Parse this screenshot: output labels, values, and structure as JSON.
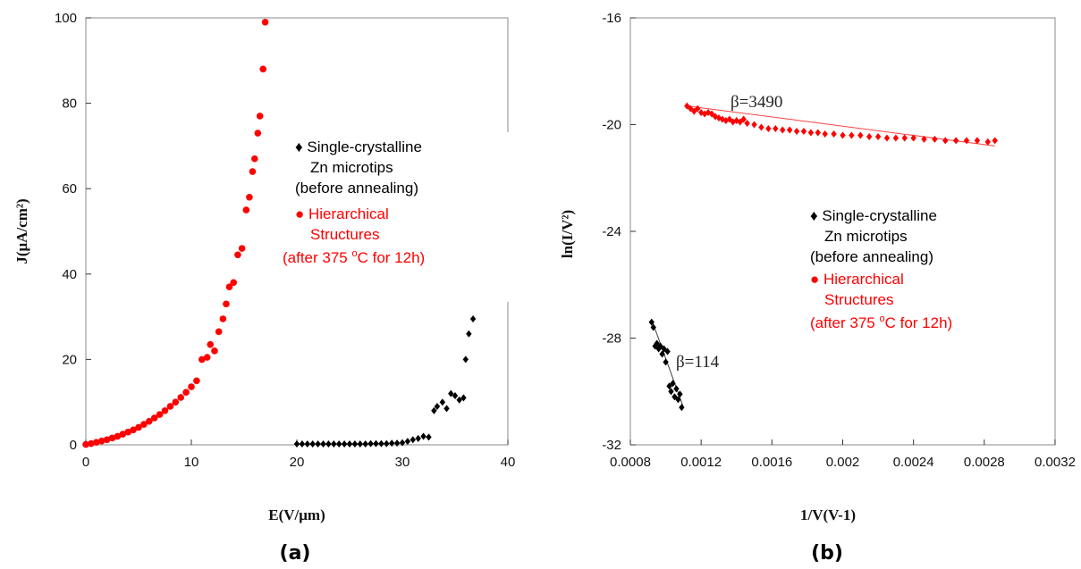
{
  "chart_data": [
    {
      "type": "scatter",
      "panel_label": "(a)",
      "xlabel": "E(V/μm)",
      "ylabel": "J(μA/cm²)",
      "xlim": [
        0,
        40
      ],
      "ylim": [
        0,
        100
      ],
      "xticks": [
        "0",
        "10",
        "20",
        "30",
        "40"
      ],
      "yticks": [
        "0",
        "20",
        "40",
        "60",
        "80",
        "100"
      ],
      "colors": {
        "single": "#000000",
        "hier": "#ff0000"
      },
      "legend": {
        "line1": "♦ Single-crystalline",
        "line2": "Zn microtips",
        "line3": "(before annealing)",
        "line4": "● Hierarchical",
        "line5": "Structures",
        "line6_pre": "(after 375 ",
        "line6_sup": "o",
        "line6_post": "C for 12h)"
      },
      "series": [
        {
          "key": "single",
          "marker": "diamond",
          "points": [
            [
              20.0,
              0.2
            ],
            [
              20.5,
              0.2
            ],
            [
              21.0,
              0.2
            ],
            [
              21.5,
              0.2
            ],
            [
              22.0,
              0.2
            ],
            [
              22.5,
              0.2
            ],
            [
              23.0,
              0.2
            ],
            [
              23.5,
              0.2
            ],
            [
              24.0,
              0.2
            ],
            [
              24.5,
              0.2
            ],
            [
              25.0,
              0.2
            ],
            [
              25.5,
              0.2
            ],
            [
              26.0,
              0.2
            ],
            [
              26.5,
              0.2
            ],
            [
              27.0,
              0.3
            ],
            [
              27.5,
              0.3
            ],
            [
              28.0,
              0.3
            ],
            [
              28.5,
              0.3
            ],
            [
              29.0,
              0.4
            ],
            [
              29.5,
              0.4
            ],
            [
              30.0,
              0.5
            ],
            [
              30.5,
              0.8
            ],
            [
              31.0,
              1.2
            ],
            [
              31.5,
              1.5
            ],
            [
              32.0,
              2.0
            ],
            [
              32.5,
              1.8
            ],
            [
              33.0,
              8.0
            ],
            [
              33.3,
              9.0
            ],
            [
              33.8,
              10.0
            ],
            [
              34.2,
              8.5
            ],
            [
              34.6,
              12.0
            ],
            [
              35.0,
              11.5
            ],
            [
              35.4,
              10.5
            ],
            [
              35.8,
              11.0
            ],
            [
              36.0,
              20.0
            ],
            [
              36.3,
              26.0
            ],
            [
              36.7,
              29.5
            ]
          ]
        },
        {
          "key": "hier",
          "marker": "circle",
          "points": [
            [
              0.0,
              0.1
            ],
            [
              0.5,
              0.3
            ],
            [
              1.0,
              0.6
            ],
            [
              1.5,
              0.9
            ],
            [
              2.0,
              1.2
            ],
            [
              2.5,
              1.6
            ],
            [
              3.0,
              2.0
            ],
            [
              3.5,
              2.5
            ],
            [
              4.0,
              3.0
            ],
            [
              4.5,
              3.5
            ],
            [
              5.0,
              4.1
            ],
            [
              5.5,
              4.8
            ],
            [
              6.0,
              5.5
            ],
            [
              6.5,
              6.3
            ],
            [
              7.0,
              7.1
            ],
            [
              7.5,
              8.0
            ],
            [
              8.0,
              9.0
            ],
            [
              8.5,
              10.0
            ],
            [
              9.0,
              11.1
            ],
            [
              9.5,
              12.3
            ],
            [
              10.0,
              13.6
            ],
            [
              10.5,
              15.0
            ],
            [
              11.0,
              20.0
            ],
            [
              11.5,
              20.5
            ],
            [
              11.8,
              23.5
            ],
            [
              12.2,
              22.0
            ],
            [
              12.6,
              26.5
            ],
            [
              13.0,
              29.5
            ],
            [
              13.3,
              33.0
            ],
            [
              13.6,
              37.0
            ],
            [
              14.0,
              38.0
            ],
            [
              14.4,
              44.5
            ],
            [
              14.8,
              46.0
            ],
            [
              15.2,
              55.0
            ],
            [
              15.5,
              58.0
            ],
            [
              15.8,
              64.0
            ],
            [
              16.0,
              67.0
            ],
            [
              16.3,
              73.0
            ],
            [
              16.5,
              77.0
            ],
            [
              16.8,
              88.0
            ],
            [
              17.0,
              99.0
            ]
          ]
        }
      ]
    },
    {
      "type": "scatter",
      "panel_label": "(b)",
      "xlabel": "1/V(V-1)",
      "ylabel": "ln(I/V²)",
      "xlim": [
        0.0008,
        0.0032
      ],
      "ylim": [
        -32,
        -16
      ],
      "xticks": [
        "0.0008",
        "0.0012",
        "0.0016",
        "0.002",
        "0.0024",
        "0.0028",
        "0.0032"
      ],
      "yticks": [
        "-16",
        "-20",
        "-24",
        "-28",
        "-32"
      ],
      "colors": {
        "single": "#000000",
        "hier": "#ff0000"
      },
      "annotations": [
        "β=3490",
        "β=114"
      ],
      "legend": {
        "line1": "♦ Single-crystalline",
        "line2": "Zn microtips",
        "line3": "(before annealing)",
        "line4": "● Hierarchical",
        "line5": "Structures",
        "line6_pre": "(after 375 ",
        "line6_sup": "o",
        "line6_post": "C for 12h)"
      },
      "series": [
        {
          "key": "hier",
          "marker": "diamond",
          "points": [
            [
              0.00112,
              -19.3
            ],
            [
              0.00114,
              -19.4
            ],
            [
              0.00116,
              -19.5
            ],
            [
              0.00118,
              -19.4
            ],
            [
              0.0012,
              -19.55
            ],
            [
              0.00122,
              -19.6
            ],
            [
              0.00124,
              -19.55
            ],
            [
              0.00126,
              -19.6
            ],
            [
              0.00128,
              -19.7
            ],
            [
              0.0013,
              -19.75
            ],
            [
              0.00132,
              -19.8
            ],
            [
              0.00134,
              -19.85
            ],
            [
              0.00136,
              -19.8
            ],
            [
              0.00138,
              -19.9
            ],
            [
              0.0014,
              -19.85
            ],
            [
              0.00142,
              -19.9
            ],
            [
              0.00144,
              -19.8
            ],
            [
              0.00146,
              -19.95
            ],
            [
              0.0015,
              -20.0
            ],
            [
              0.00154,
              -20.1
            ],
            [
              0.00158,
              -20.15
            ],
            [
              0.00162,
              -20.15
            ],
            [
              0.00166,
              -20.2
            ],
            [
              0.0017,
              -20.2
            ],
            [
              0.00174,
              -20.25
            ],
            [
              0.00178,
              -20.25
            ],
            [
              0.00182,
              -20.3
            ],
            [
              0.00186,
              -20.3
            ],
            [
              0.0019,
              -20.35
            ],
            [
              0.00195,
              -20.35
            ],
            [
              0.002,
              -20.4
            ],
            [
              0.00205,
              -20.4
            ],
            [
              0.0021,
              -20.4
            ],
            [
              0.00215,
              -20.45
            ],
            [
              0.0022,
              -20.45
            ],
            [
              0.00225,
              -20.5
            ],
            [
              0.0023,
              -20.5
            ],
            [
              0.00235,
              -20.5
            ],
            [
              0.0024,
              -20.5
            ],
            [
              0.00246,
              -20.55
            ],
            [
              0.00252,
              -20.55
            ],
            [
              0.00258,
              -20.6
            ],
            [
              0.00264,
              -20.6
            ],
            [
              0.0027,
              -20.6
            ],
            [
              0.00276,
              -20.6
            ],
            [
              0.00282,
              -20.65
            ],
            [
              0.00286,
              -20.6
            ]
          ],
          "fit": [
            [
              0.00112,
              -19.3
            ],
            [
              0.00286,
              -20.8
            ]
          ]
        },
        {
          "key": "single",
          "marker": "diamond",
          "points": [
            [
              0.00092,
              -27.4
            ],
            [
              0.00093,
              -27.6
            ],
            [
              0.00094,
              -28.3
            ],
            [
              0.00095,
              -28.2
            ],
            [
              0.00096,
              -28.4
            ],
            [
              0.00097,
              -28.3
            ],
            [
              0.00098,
              -28.6
            ],
            [
              0.00099,
              -28.4
            ],
            [
              0.001,
              -28.9
            ],
            [
              0.00101,
              -28.5
            ],
            [
              0.00102,
              -29.8
            ],
            [
              0.00103,
              -30.0
            ],
            [
              0.00104,
              -29.7
            ],
            [
              0.00105,
              -30.2
            ],
            [
              0.00106,
              -29.9
            ],
            [
              0.00107,
              -30.3
            ],
            [
              0.00108,
              -30.1
            ],
            [
              0.00109,
              -30.6
            ]
          ],
          "fit": [
            [
              0.00092,
              -27.3
            ],
            [
              0.0011,
              -30.6
            ]
          ]
        }
      ]
    }
  ]
}
